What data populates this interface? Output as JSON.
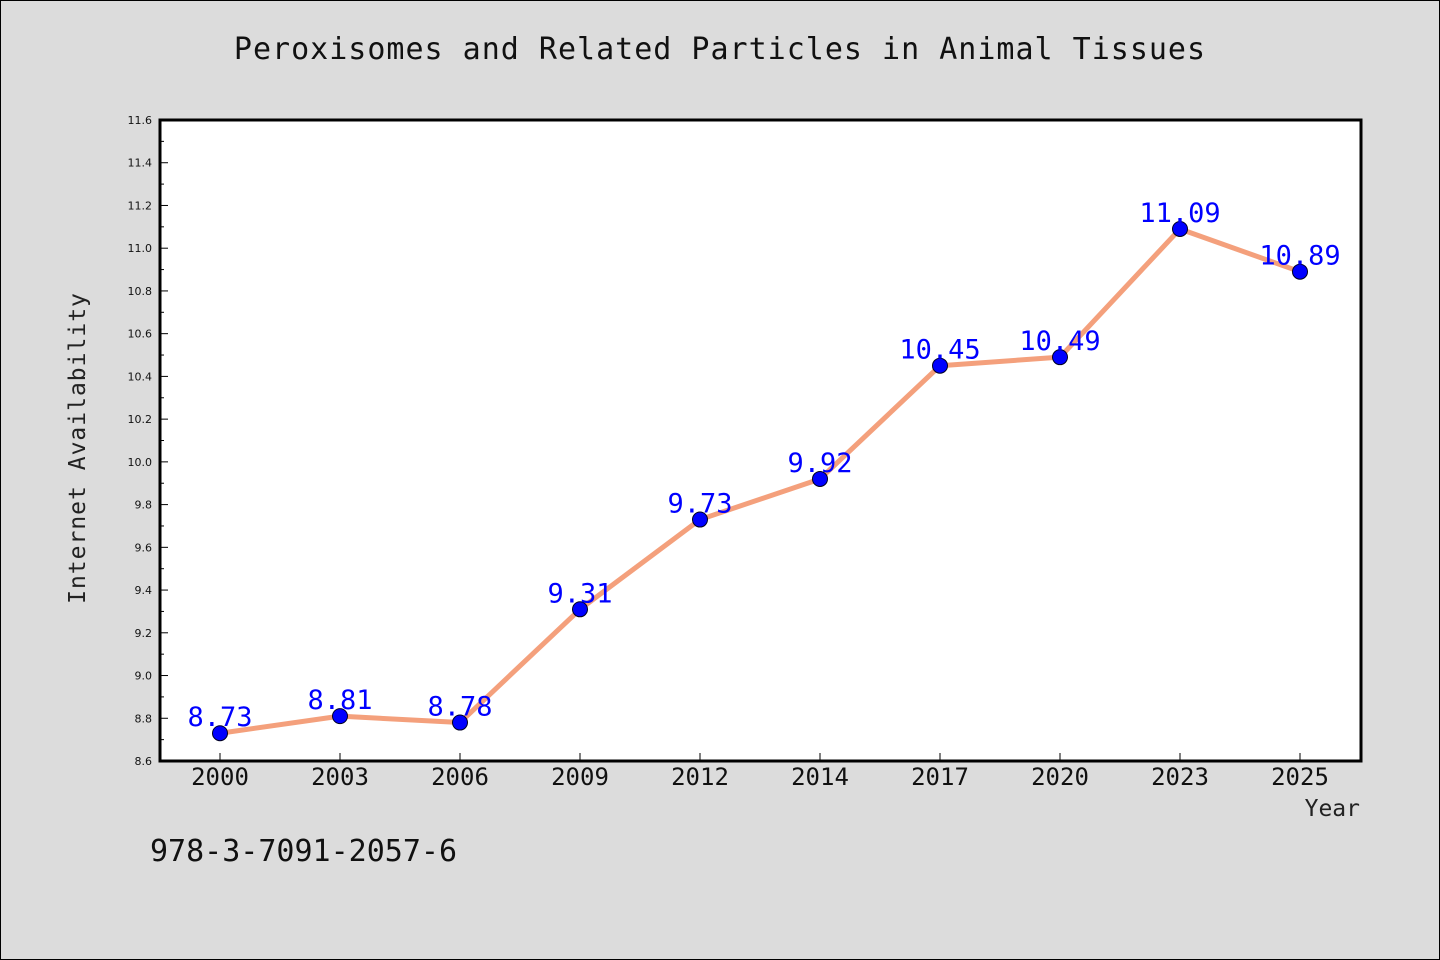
{
  "chart_data": {
    "type": "line",
    "title": "Peroxisomes and Related Particles in Animal Tissues",
    "xlabel": "Year",
    "ylabel": "Internet Availability",
    "categories": [
      "2000",
      "2003",
      "2006",
      "2009",
      "2012",
      "2014",
      "2017",
      "2020",
      "2023",
      "2025"
    ],
    "series": [
      {
        "values": [
          8.73,
          8.81,
          8.78,
          9.31,
          9.73,
          9.92,
          10.45,
          10.49,
          11.09,
          10.89
        ],
        "labels": [
          "8.73",
          "8.81",
          "8.78",
          "9.31",
          "9.73",
          "9.92",
          "10.45",
          "10.49",
          "11.09",
          "10.89"
        ]
      }
    ],
    "ylim": [
      8.6,
      11.6
    ],
    "yticks": [
      "8.6",
      "8.8",
      "9.0",
      "9.2",
      "9.4",
      "9.6",
      "9.8",
      "10.0",
      "10.2",
      "10.4",
      "10.6",
      "10.8",
      "11.0",
      "11.2",
      "11.4",
      "11.6"
    ],
    "grid": false,
    "line_color": "#f4a07c",
    "marker_color": "#0000ff",
    "label_color": "#0000ff"
  },
  "footer": {
    "isbn": "978-3-7091-2057-6"
  }
}
